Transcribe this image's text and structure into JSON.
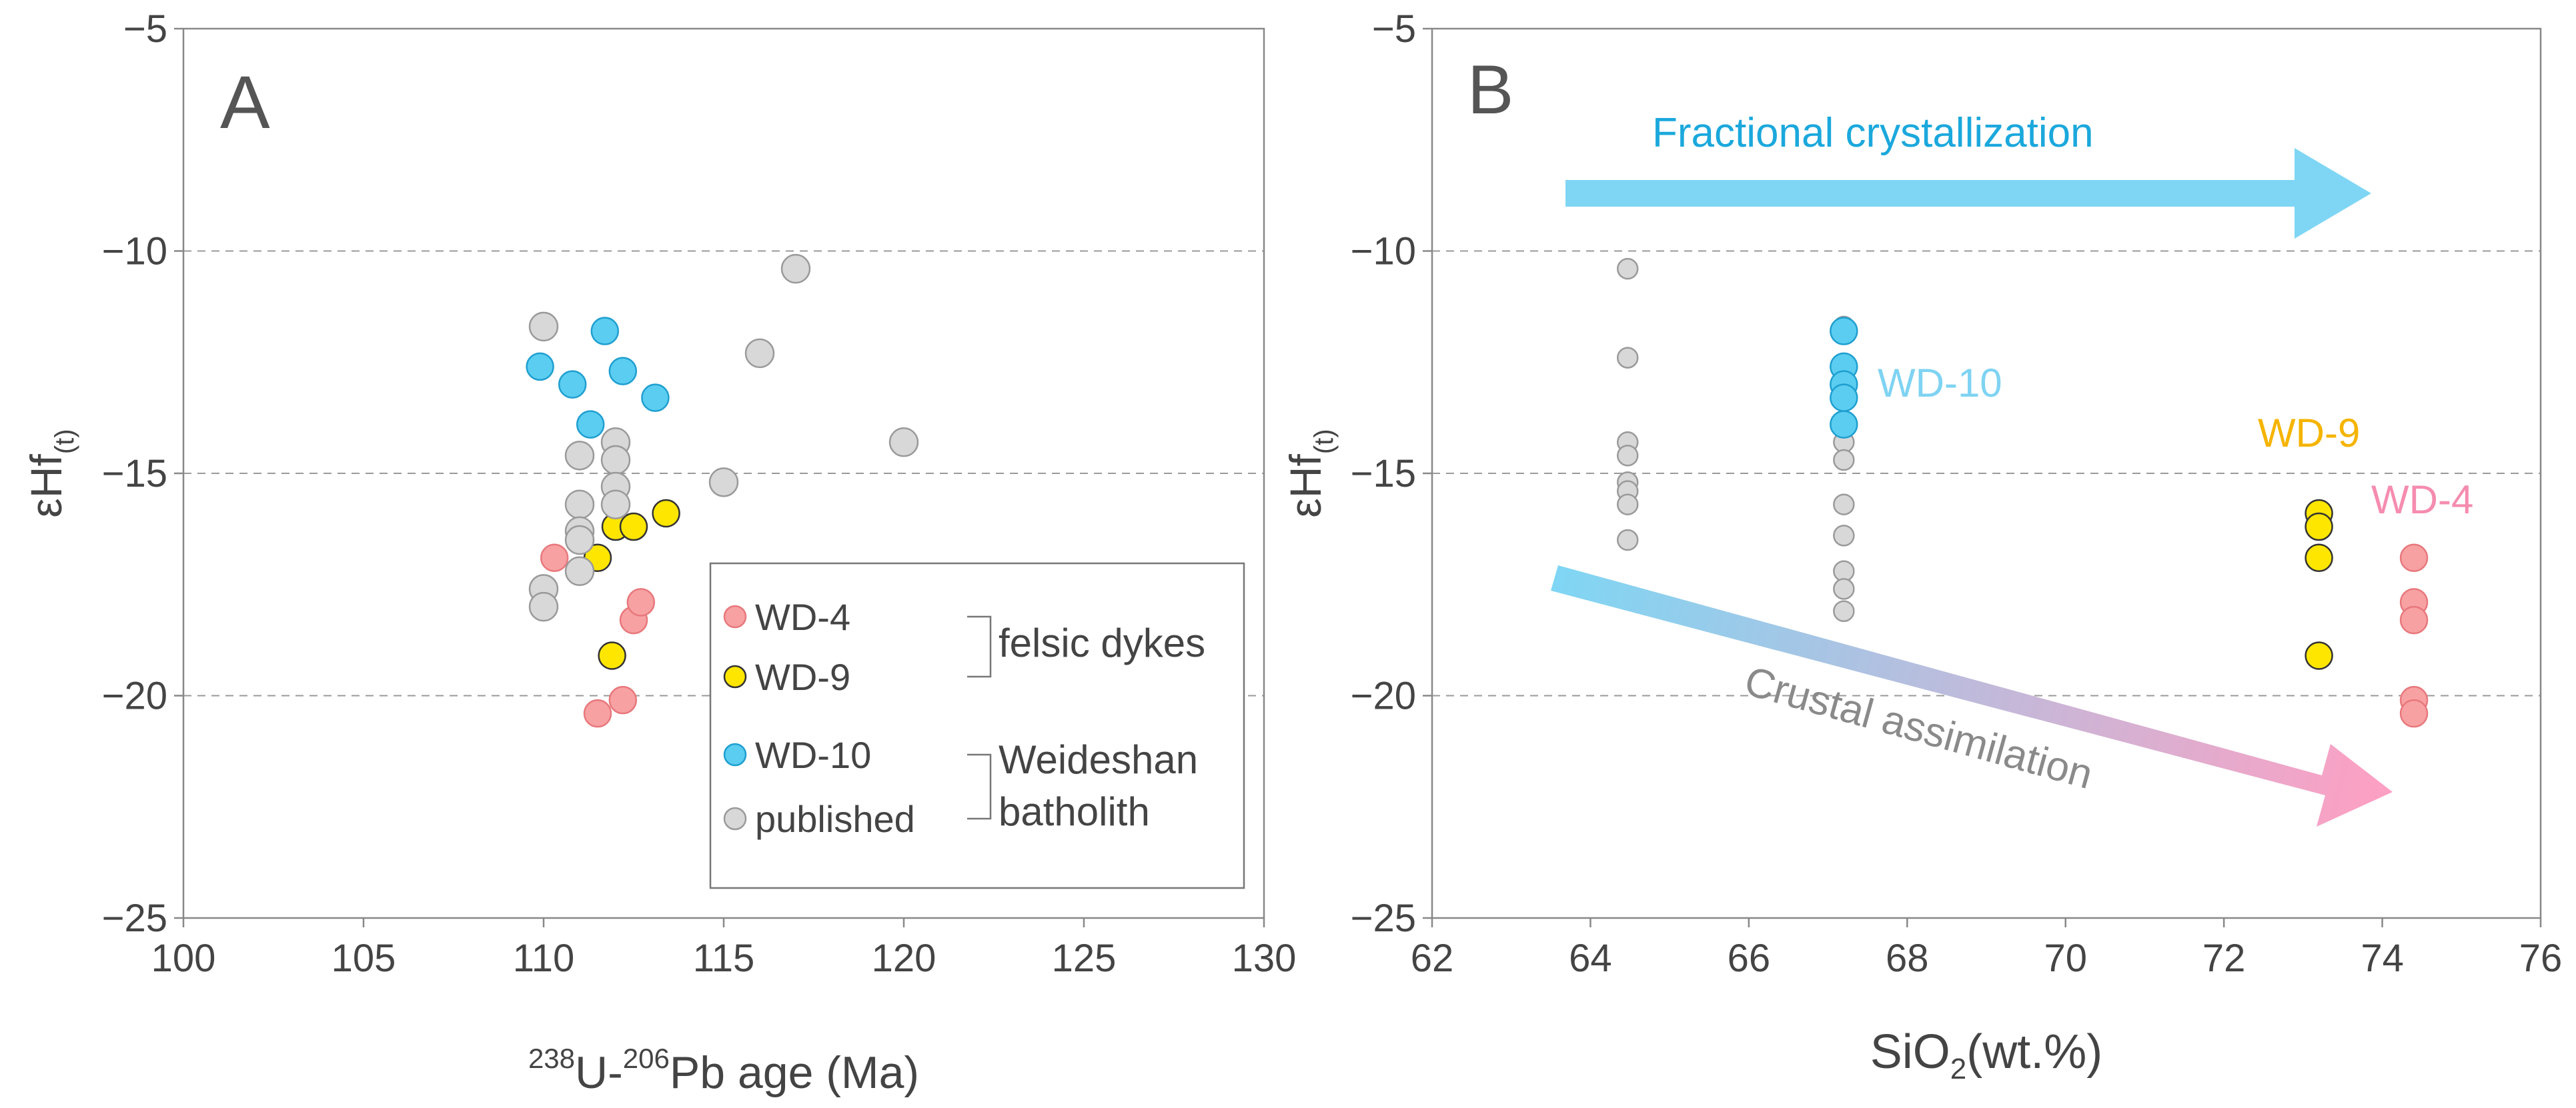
{
  "chart_data": [
    {
      "type": "scatter",
      "panel_label": "A",
      "title": "",
      "xlabel": {
        "sup1": "238",
        "part1": "U-",
        "sup2": "206",
        "part2": "Pb age (Ma)"
      },
      "ylabel": {
        "main": "εHf",
        "sub": "(t)"
      },
      "xlim": [
        100,
        130
      ],
      "ylim": [
        -25,
        -5
      ],
      "xticks": [
        100,
        105,
        110,
        115,
        120,
        125,
        130
      ],
      "xtick_labels": [
        "100",
        "105",
        "110",
        "115",
        "120",
        "125",
        "130"
      ],
      "yticks": [
        -25,
        -20,
        -15,
        -10,
        -5
      ],
      "ytick_labels": [
        "−25",
        "−20",
        "−15",
        "−10",
        "−5"
      ],
      "grid": {
        "axis": "y",
        "values": [
          -20,
          -15,
          -10
        ],
        "style": "dashed"
      },
      "legend": {
        "placement": "bottom-right",
        "entries": [
          {
            "name": "WD-4",
            "color": "#f7a1a3"
          },
          {
            "name": "WD-9",
            "color": "#ffe600"
          },
          {
            "name": "WD-10",
            "color": "#5bcdf0"
          },
          {
            "name": "published",
            "color": "#d8d8d8"
          }
        ],
        "groups": [
          {
            "lines": [
              "felsic dykes"
            ]
          },
          {
            "lines": [
              "Weideshan",
              "batholith"
            ]
          }
        ]
      },
      "series": [
        {
          "name": "WD-4",
          "color": "#f7a1a3",
          "stroke": "#e8787c",
          "points": [
            [
              110.3,
              -16.9
            ],
            [
              111.5,
              -20.4
            ],
            [
              112.2,
              -20.1
            ],
            [
              112.5,
              -18.3
            ],
            [
              112.7,
              -17.9
            ]
          ]
        },
        {
          "name": "WD-9",
          "color": "#ffe600",
          "stroke": "#333333",
          "points": [
            [
              111.5,
              -16.9
            ],
            [
              111.9,
              -19.1
            ],
            [
              112.0,
              -16.2
            ],
            [
              112.5,
              -16.2
            ],
            [
              113.4,
              -15.9
            ]
          ]
        },
        {
          "name": "WD-10",
          "color": "#5bcdf0",
          "stroke": "#1f9fd0",
          "points": [
            [
              109.9,
              -12.6
            ],
            [
              110.8,
              -13.0
            ],
            [
              111.3,
              -13.9
            ],
            [
              111.7,
              -11.8
            ],
            [
              112.2,
              -12.7
            ],
            [
              113.1,
              -13.3
            ]
          ]
        },
        {
          "name": "published",
          "color": "#d8d8d8",
          "stroke": "#9a9a9a",
          "points": [
            [
              110.0,
              -11.7
            ],
            [
              110.0,
              -17.6
            ],
            [
              110.0,
              -18.0
            ],
            [
              111.0,
              -14.6
            ],
            [
              111.0,
              -15.7
            ],
            [
              111.0,
              -16.3
            ],
            [
              111.0,
              -16.5
            ],
            [
              111.0,
              -17.2
            ],
            [
              112.0,
              -14.3
            ],
            [
              112.0,
              -14.7
            ],
            [
              112.0,
              -15.3
            ],
            [
              112.0,
              -15.7
            ],
            [
              115.0,
              -15.2
            ],
            [
              116.0,
              -12.3
            ],
            [
              117.0,
              -10.4
            ],
            [
              120.0,
              -14.3
            ]
          ]
        }
      ]
    },
    {
      "type": "scatter",
      "panel_label": "B",
      "title": "",
      "xlabel": {
        "main": "SiO",
        "sub": "2",
        "rest": "(wt.%)"
      },
      "ylabel": {
        "main": "εHf",
        "sub": "(t)"
      },
      "xlim": [
        62,
        76
      ],
      "ylim": [
        -25,
        -5
      ],
      "xticks": [
        62,
        64,
        66,
        68,
        70,
        72,
        74,
        76
      ],
      "xtick_labels": [
        "62",
        "64",
        "66",
        "68",
        "70",
        "72",
        "74",
        "76"
      ],
      "yticks": [
        -25,
        -20,
        -15,
        -10,
        -5
      ],
      "ytick_labels": [
        "−25",
        "−20",
        "−15",
        "−10",
        "−5"
      ],
      "grid": {
        "axis": "y",
        "values": [
          -20,
          -15,
          -10
        ],
        "style": "dashed"
      },
      "annotations": [
        {
          "text": "Fractional crystallization",
          "color": "#1ba8dc"
        },
        {
          "text": "Crustal assimilation",
          "color": "#8a8a8a"
        },
        {
          "text": "WD-10",
          "color": "#7fd3f2"
        },
        {
          "text": "WD-9",
          "color": "#f5b400"
        },
        {
          "text": "WD-4",
          "color": "#f58cb0"
        }
      ],
      "arrows": [
        {
          "name": "fractional-crystallization",
          "from": [
            63.8,
            -8.8
          ],
          "to": [
            74.0,
            -8.8
          ],
          "color": "#7fd6f4"
        },
        {
          "name": "crustal-assimilation",
          "from": [
            63.7,
            -17.6
          ],
          "to": [
            74.3,
            -22.2
          ],
          "color_start": "#7fd6f4",
          "color_end": "#ff9fc2"
        }
      ],
      "series": [
        {
          "name": "published",
          "color": "#d8d8d8",
          "stroke": "#9a9a9a",
          "points": [
            [
              64.47,
              -10.4
            ],
            [
              64.47,
              -12.4
            ],
            [
              64.47,
              -14.3
            ],
            [
              64.47,
              -14.6
            ],
            [
              64.47,
              -15.2
            ],
            [
              64.47,
              -15.4
            ],
            [
              64.47,
              -15.7
            ],
            [
              64.47,
              -16.5
            ],
            [
              67.2,
              -11.7
            ],
            [
              67.2,
              -14.3
            ],
            [
              67.2,
              -14.7
            ],
            [
              67.2,
              -15.7
            ],
            [
              67.2,
              -16.4
            ],
            [
              67.2,
              -17.2
            ],
            [
              67.2,
              -17.6
            ],
            [
              67.2,
              -18.1
            ]
          ]
        },
        {
          "name": "WD-10",
          "color": "#5bcdf0",
          "stroke": "#1f9fd0",
          "points": [
            [
              67.2,
              -11.8
            ],
            [
              67.2,
              -12.6
            ],
            [
              67.2,
              -13.0
            ],
            [
              67.2,
              -13.3
            ],
            [
              67.2,
              -13.9
            ]
          ]
        },
        {
          "name": "WD-9",
          "color": "#ffe600",
          "stroke": "#333333",
          "points": [
            [
              73.2,
              -15.9
            ],
            [
              73.2,
              -16.2
            ],
            [
              73.2,
              -16.9
            ],
            [
              73.2,
              -19.1
            ]
          ]
        },
        {
          "name": "WD-4",
          "color": "#f7a1a3",
          "stroke": "#e8787c",
          "points": [
            [
              74.4,
              -16.9
            ],
            [
              74.4,
              -17.9
            ],
            [
              74.4,
              -18.3
            ],
            [
              74.4,
              -20.1
            ],
            [
              74.4,
              -20.4
            ]
          ]
        }
      ]
    }
  ]
}
